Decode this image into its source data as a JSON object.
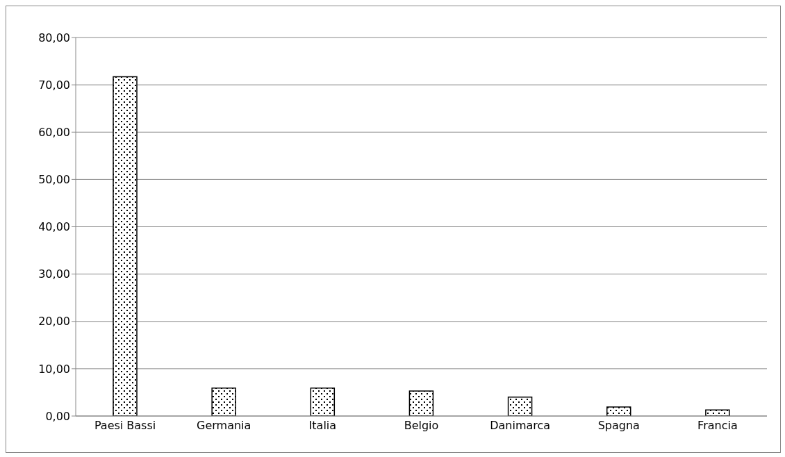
{
  "chart_data": {
    "type": "bar",
    "categories": [
      "Paesi Bassi",
      "Germania",
      "Italia",
      "Belgio",
      "Danimarca",
      "Spagna",
      "Francia"
    ],
    "values": [
      71.7,
      5.9,
      5.9,
      5.3,
      4.0,
      1.9,
      1.3
    ],
    "color": "#000000",
    "ylim": [
      0,
      80
    ],
    "yticks": [
      {
        "value": 0,
        "label": "0,00"
      },
      {
        "value": 10,
        "label": "10,00"
      },
      {
        "value": 20,
        "label": "20,00"
      },
      {
        "value": 30,
        "label": "30,00"
      },
      {
        "value": 40,
        "label": "40,00"
      },
      {
        "value": 50,
        "label": "50,00"
      },
      {
        "value": 60,
        "label": "60,00"
      },
      {
        "value": 70,
        "label": "70,00"
      },
      {
        "value": 80,
        "label": "80,00"
      }
    ],
    "grid": "y",
    "legend": false
  }
}
